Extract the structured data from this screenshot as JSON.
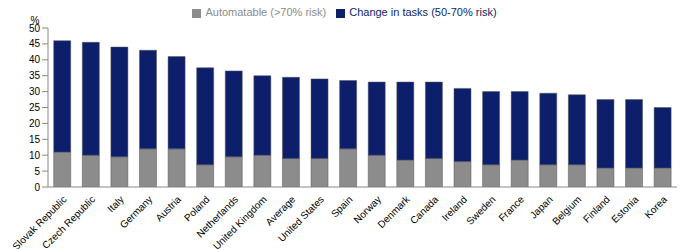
{
  "chart_data": {
    "type": "bar",
    "stacked": true,
    "y_label": "%",
    "categories": [
      "Slovak Republic",
      "Czech Republic",
      "Italy",
      "Germany",
      "Austria",
      "Poland",
      "Netherlands",
      "United Kingdom",
      "Average",
      "United States",
      "Spain",
      "Norway",
      "Denmark",
      "Canada",
      "Ireland",
      "Sweden",
      "France",
      "Japan",
      "Belgium",
      "Finland",
      "Estonia",
      "Korea"
    ],
    "series": [
      {
        "name": "Automatable (>70% risk)",
        "color": "#8c8c8c",
        "values": [
          11,
          10,
          9.5,
          12,
          12,
          7,
          9.5,
          10,
          9,
          9,
          12,
          10,
          8.5,
          9,
          8,
          7,
          8.5,
          7,
          7,
          6,
          6,
          6
        ]
      },
      {
        "name": "Change in tasks (50-70% risk)",
        "color": "#0d1f6b",
        "values": [
          35,
          35.5,
          34.5,
          31,
          29,
          30.5,
          27,
          25,
          25.5,
          25,
          21.5,
          23,
          24.5,
          24,
          23,
          23,
          21.5,
          22.5,
          22,
          21.5,
          21.5,
          19
        ]
      }
    ],
    "ylim": [
      0,
      50
    ],
    "yticks": [
      0,
      5,
      10,
      15,
      20,
      25,
      30,
      35,
      40,
      45,
      50
    ],
    "grid": false,
    "legend": "top"
  }
}
